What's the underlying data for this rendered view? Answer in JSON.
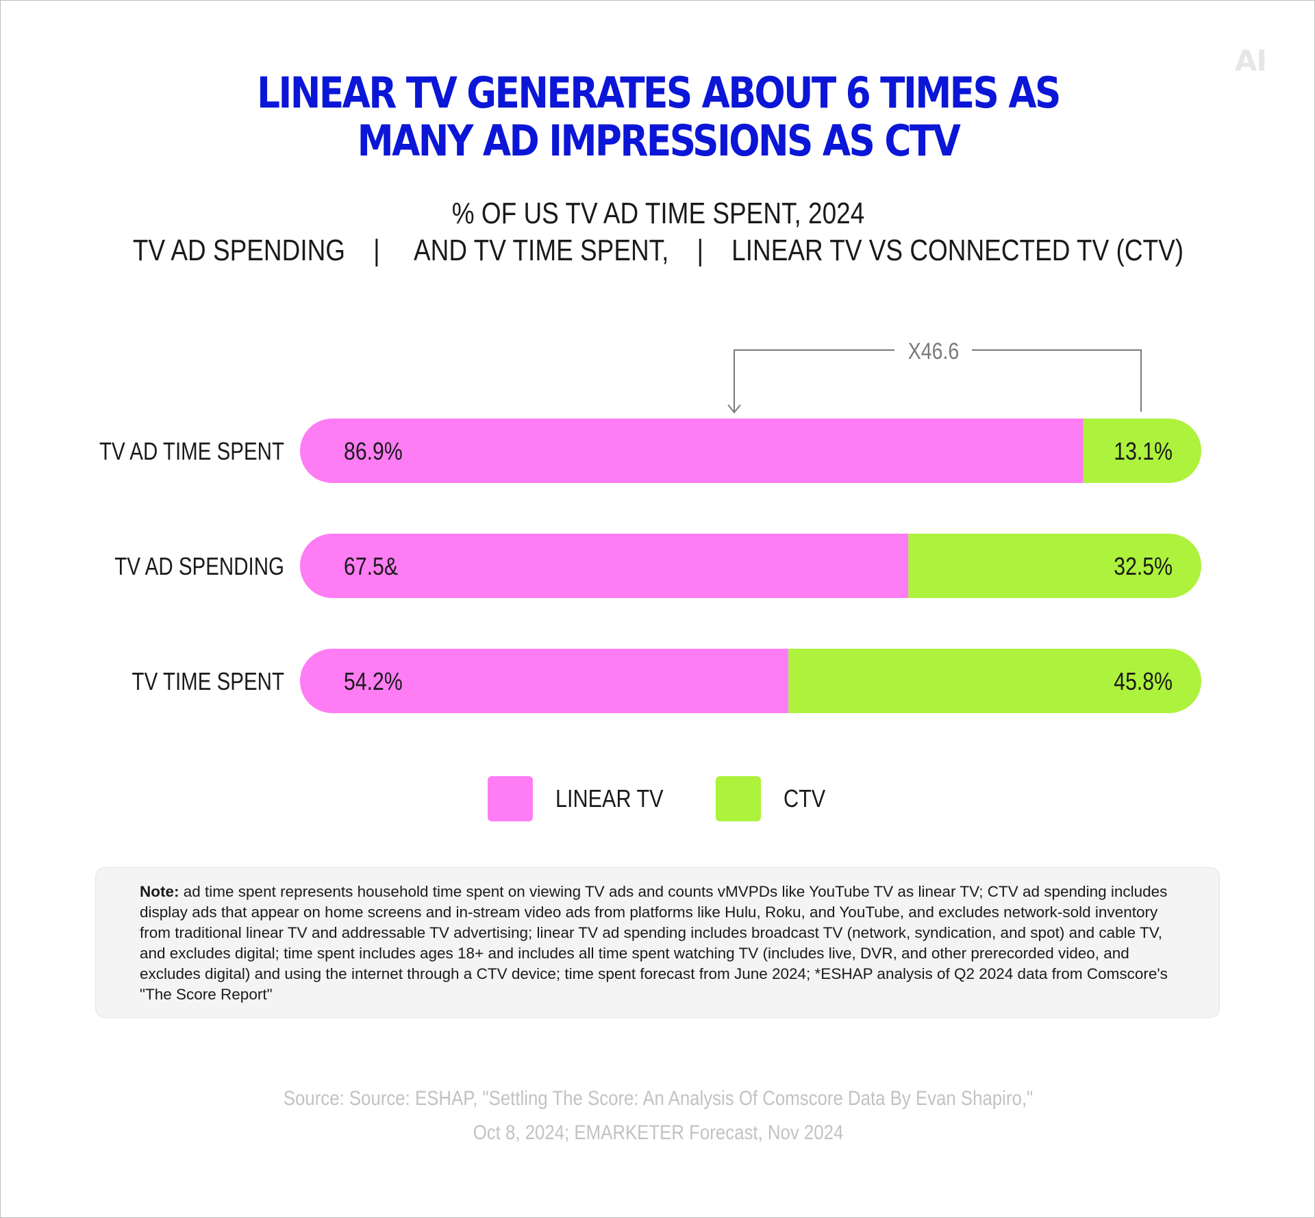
{
  "logo_text": "AI",
  "title": {
    "line1": "LINEAR TV  GENERATES ABOUT 6 TIMES AS",
    "line2": "MANY AD IMPRESSIONS AS CTV"
  },
  "subtitle": {
    "line1": "% OF US TV AD TIME SPENT, 2024",
    "line2": "TV AD SPENDING    |     AND TV TIME SPENT,    |    LINEAR TV VS CONNECTED TV (CTV)"
  },
  "chart_data": {
    "type": "bar",
    "stacked": true,
    "orientation": "horizontal",
    "categories": [
      "TV AD TIME SPENT",
      "TV AD SPENDING",
      "TV TIME SPENT"
    ],
    "series": [
      {
        "name": "LINEAR TV",
        "values": [
          86.9,
          67.5,
          54.2
        ],
        "labels": [
          "86.9%",
          "67.5&",
          "54.2%"
        ],
        "color": "#fe7cf4"
      },
      {
        "name": "CTV",
        "values": [
          13.1,
          32.5,
          45.8
        ],
        "labels": [
          "13.1%",
          "32.5%",
          "45.8%"
        ],
        "color": "#adf23c"
      }
    ],
    "annotation": "X46.6",
    "xlim": [
      0,
      100
    ],
    "legend_position": "bottom-center"
  },
  "legend": {
    "linear_label": "LINEAR TV",
    "ctv_label": "CTV"
  },
  "note": {
    "label": "Note:",
    "text": " ad time spent represents household time spent on viewing TV ads and counts vMVPDs like YouTube TV as linear TV; CTV ad spending includes display ads that appear on home screens and in-stream video ads from platforms like Hulu, Roku, and YouTube, and excludes network-sold inventory from traditional linear TV and addressable TV advertising; linear TV ad spending includes broadcast TV (network, syndication, and spot) and cable TV, and excludes digital; time spent includes ages 18+ and includes all time spent watching TV (includes live, DVR, and other prerecorded video, and excludes digital) and using the internet through a CTV device; time spent forecast from June 2024; *ESHAP analysis of Q2 2024 data from Comscore's \"The Score Report\""
  },
  "source": {
    "line1": "Source: Source: ESHAP, \"Settling The Score: An Analysis Of Comscore Data By Evan Shapiro,\"",
    "line2": "Oct 8, 2024; EMARKETER Forecast, Nov 2024"
  },
  "colors": {
    "title": "#0b16d6",
    "linear": "#fe7cf4",
    "ctv": "#adf23c",
    "annotation": "#7a7a7a"
  }
}
